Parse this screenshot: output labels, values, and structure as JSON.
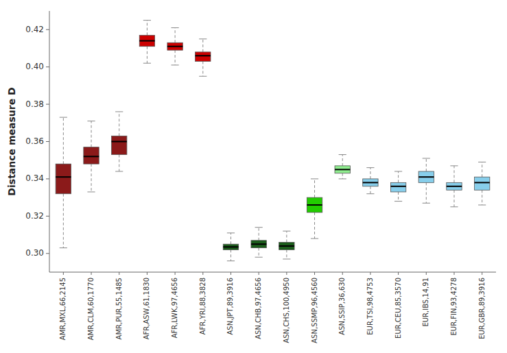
{
  "chart_data": {
    "type": "box",
    "ylabel": "Distance measure D",
    "categories": [
      "AMR,MXL,66,2145",
      "AMR,CLM,60,1770",
      "AMR,PUR,55,1485",
      "AFR,ASW,61,1830",
      "AFR,LWK,97,4656",
      "AFR,YRI,88,3828",
      "ASN,JPT,89,3916",
      "ASN,CHB,97,4656",
      "ASN,CHS,100,4950",
      "ASN,SSMP,96,4560",
      "ASN,SSIP,36,630",
      "EUR,TSI,98,4753",
      "EUR,CEU,85,3570",
      "EUR,IBS,14,91",
      "EUR,FIN,93,4278",
      "EUR,GBR,89,3916"
    ],
    "values": [
      {
        "whislo": 0.303,
        "q1": 0.332,
        "med": 0.341,
        "q3": 0.348,
        "whishi": 0.373
      },
      {
        "whislo": 0.333,
        "q1": 0.348,
        "med": 0.352,
        "q3": 0.357,
        "whishi": 0.371
      },
      {
        "whislo": 0.344,
        "q1": 0.353,
        "med": 0.36,
        "q3": 0.363,
        "whishi": 0.376
      },
      {
        "whislo": 0.402,
        "q1": 0.411,
        "med": 0.414,
        "q3": 0.417,
        "whishi": 0.425
      },
      {
        "whislo": 0.401,
        "q1": 0.409,
        "med": 0.411,
        "q3": 0.413,
        "whishi": 0.421
      },
      {
        "whislo": 0.395,
        "q1": 0.403,
        "med": 0.406,
        "q3": 0.408,
        "whishi": 0.415
      },
      {
        "whislo": 0.296,
        "q1": 0.302,
        "med": 0.3035,
        "q3": 0.305,
        "whishi": 0.311
      },
      {
        "whislo": 0.298,
        "q1": 0.303,
        "med": 0.305,
        "q3": 0.307,
        "whishi": 0.314
      },
      {
        "whislo": 0.297,
        "q1": 0.302,
        "med": 0.304,
        "q3": 0.306,
        "whishi": 0.312
      },
      {
        "whislo": 0.308,
        "q1": 0.322,
        "med": 0.326,
        "q3": 0.33,
        "whishi": 0.34
      },
      {
        "whislo": 0.34,
        "q1": 0.343,
        "med": 0.345,
        "q3": 0.347,
        "whishi": 0.353
      },
      {
        "whislo": 0.332,
        "q1": 0.336,
        "med": 0.338,
        "q3": 0.34,
        "whishi": 0.346
      },
      {
        "whislo": 0.328,
        "q1": 0.333,
        "med": 0.336,
        "q3": 0.338,
        "whishi": 0.344
      },
      {
        "whislo": 0.327,
        "q1": 0.338,
        "med": 0.341,
        "q3": 0.344,
        "whishi": 0.351
      },
      {
        "whislo": 0.325,
        "q1": 0.334,
        "med": 0.336,
        "q3": 0.338,
        "whishi": 0.347
      },
      {
        "whislo": 0.326,
        "q1": 0.334,
        "med": 0.338,
        "q3": 0.341,
        "whishi": 0.349
      }
    ],
    "colors": [
      "#8B1A1A",
      "#8B1A1A",
      "#8B1A1A",
      "#CC0000",
      "#CC0000",
      "#CC0000",
      "#1A5C1A",
      "#1A5C1A",
      "#1A5C1A",
      "#22CC00",
      "#90EE90",
      "#87CEEB",
      "#87CEEB",
      "#87CEEB",
      "#87CEEB",
      "#87CEEB"
    ],
    "ylim": [
      0.29,
      0.43
    ],
    "yticks": [
      {
        "value": 0.3,
        "label": "0.30"
      },
      0.32,
      0.34,
      0.36,
      0.38,
      {
        "value": 0.4,
        "label": "0.40"
      },
      0.42
    ],
    "grid": false
  }
}
